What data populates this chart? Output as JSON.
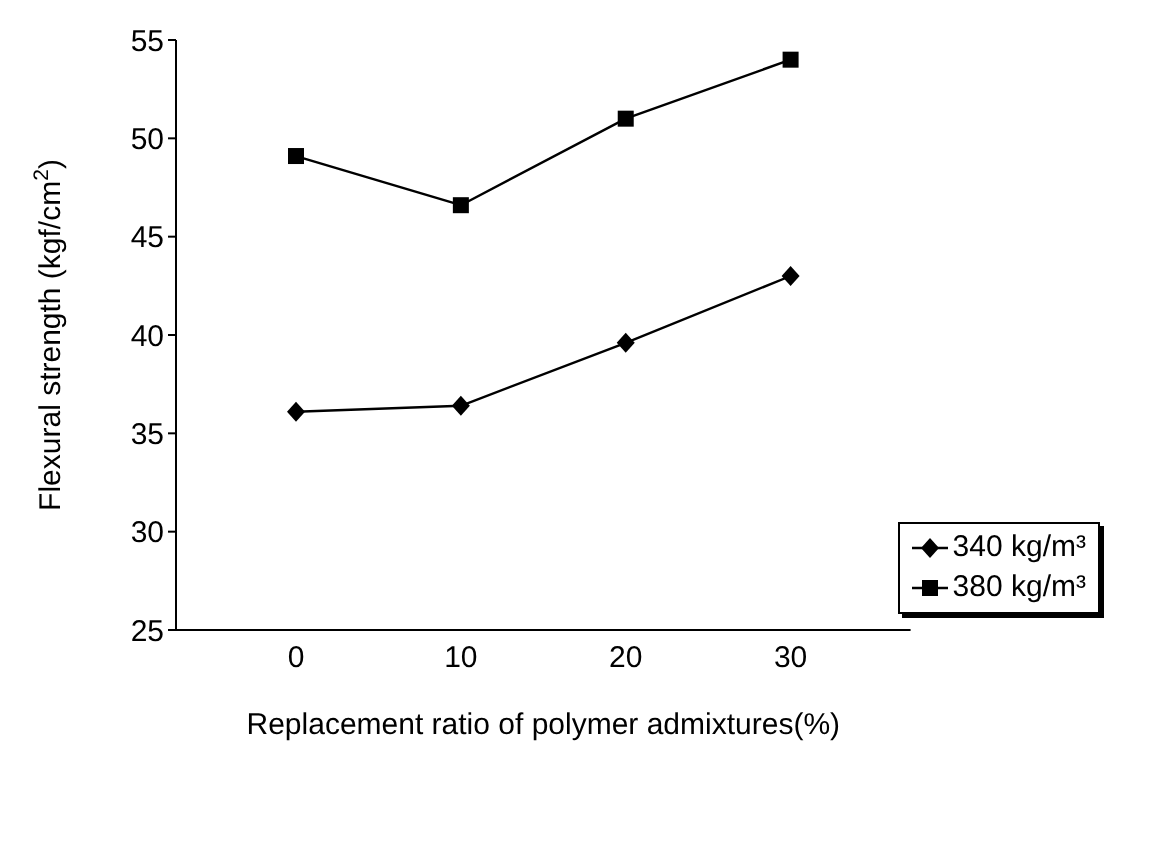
{
  "chart_data": {
    "type": "line",
    "xlabel": "Replacement ratio  of polymer admixtures(%)",
    "ylabel": "Flexural strength (kgf/cm$^{2}$)",
    "categories": [
      "0",
      "10",
      "20",
      "30"
    ],
    "ylim": [
      25,
      55
    ],
    "yticks": [
      25,
      30,
      35,
      40,
      45,
      50,
      55
    ],
    "grid": false,
    "legend": "bottom right",
    "line_style": "solid",
    "series": [
      {
        "name": "340 kg/m³",
        "color": "#000000",
        "marker": "diamond",
        "values": [
          36.1,
          36.4,
          39.6,
          43.0
        ]
      },
      {
        "name": "380 kg/m³",
        "color": "#000000",
        "marker": "square",
        "values": [
          49.1,
          46.6,
          51.0,
          54.0
        ]
      }
    ]
  }
}
